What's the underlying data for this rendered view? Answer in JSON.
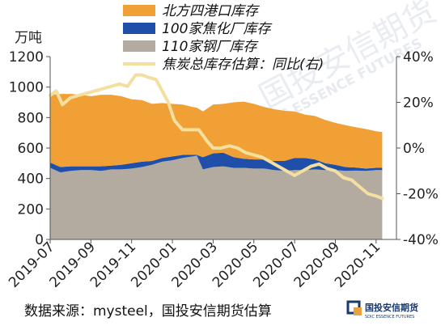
{
  "chart_data": {
    "type": "area",
    "left_unit": "万吨",
    "ylim_left": [
      0,
      1200
    ],
    "left_ticks": [
      0,
      200,
      400,
      600,
      800,
      1000,
      1200
    ],
    "ylim_right": [
      -40,
      40
    ],
    "right_ticks": [
      "-40%",
      "-20%",
      "0%",
      "20%",
      "40%"
    ],
    "right_tick_values": [
      -40,
      -20,
      0,
      20,
      40
    ],
    "x_range": [
      0,
      17
    ],
    "x_tick_positions": [
      0,
      2,
      4,
      6,
      8,
      10,
      12,
      14,
      16
    ],
    "x_ticks": [
      "2019-07",
      "2019-09",
      "2019-11",
      "2020-01",
      "2020-03",
      "2020-05",
      "2020-07",
      "2020-09",
      "2020-11"
    ],
    "x": [
      0,
      0.5,
      1,
      1.5,
      2,
      2.5,
      3,
      3.5,
      4,
      4.5,
      5,
      5.5,
      6,
      6.5,
      7,
      7.2,
      7.5,
      8,
      8.5,
      9,
      9.5,
      10,
      10.5,
      11,
      11.5,
      12,
      12.5,
      13,
      13.5,
      14,
      14.5,
      15,
      15.5,
      16,
      16.3
    ],
    "series": [
      {
        "name": "110家钢厂库存",
        "axis": "left",
        "color": "#b3aba0",
        "values": [
          470,
          440,
          450,
          455,
          455,
          450,
          460,
          460,
          465,
          475,
          490,
          510,
          520,
          535,
          545,
          550,
          460,
          475,
          480,
          470,
          470,
          465,
          465,
          455,
          450,
          455,
          455,
          460,
          455,
          455,
          450,
          452,
          450,
          455,
          455
        ]
      },
      {
        "name": "100家焦化厂库存",
        "axis": "left",
        "color": "#1f4fa8",
        "values": [
          35,
          35,
          30,
          25,
          25,
          30,
          25,
          30,
          35,
          35,
          25,
          25,
          25,
          20,
          10,
          5,
          80,
          90,
          90,
          70,
          60,
          60,
          60,
          60,
          65,
          80,
          80,
          65,
          45,
          35,
          25,
          20,
          15,
          15,
          15
        ]
      },
      {
        "name": "北方四港口库存",
        "axis": "left",
        "color": "#f0a035",
        "values": [
          445,
          480,
          475,
          470,
          460,
          470,
          465,
          450,
          420,
          405,
          375,
          360,
          345,
          330,
          315,
          310,
          300,
          320,
          320,
          360,
          375,
          365,
          345,
          340,
          330,
          305,
          285,
          285,
          285,
          275,
          275,
          265,
          260,
          240,
          235
        ]
      }
    ],
    "line": {
      "name": "焦炭总库存估算：同比(右)",
      "axis": "right",
      "color": "#f3df9f",
      "x": [
        0,
        0.3,
        0.6,
        1,
        1.4,
        1.8,
        2.2,
        2.6,
        3,
        3.4,
        3.8,
        4.2,
        4.5,
        4.8,
        5.2,
        5.5,
        5.8,
        6.1,
        6.5,
        6.9,
        7.3,
        7.7,
        8,
        8.4,
        8.8,
        9.2,
        9.6,
        10,
        10.4,
        10.8,
        11.2,
        11.6,
        12,
        12.4,
        12.8,
        13.2,
        13.6,
        14,
        14.4,
        14.8,
        15.2,
        15.6,
        16,
        16.3
      ],
      "values": [
        23,
        25,
        19,
        22,
        23,
        24,
        25,
        26,
        27,
        28,
        27,
        32,
        32,
        31,
        30,
        25,
        20,
        12,
        8,
        8,
        8,
        3,
        0,
        0,
        1,
        0,
        -2,
        -3,
        -4,
        -6,
        -8,
        -10,
        -12,
        -10,
        -8,
        -7,
        -9,
        -10,
        -13,
        -14,
        -17,
        -20,
        -21,
        -22
      ]
    },
    "grid": false,
    "legend_position": "top"
  },
  "unit_label": "万吨",
  "legend": [
    {
      "label": "北方四港口库存",
      "color": "#f0a035",
      "shape": "box"
    },
    {
      "label": "100家焦化厂库存",
      "color": "#1f4fa8",
      "shape": "box"
    },
    {
      "label": "110家钢厂库存",
      "color": "#b3aba0",
      "shape": "box"
    },
    {
      "label": "焦炭总库存估算：同比(右)",
      "color": "#f3df9f",
      "shape": "line"
    }
  ],
  "source_text": "数据来源：mysteel，国投安信期货估算",
  "logo": {
    "name": "国投安信期货",
    "sub": "SDIC ESSENCE FUTURES",
    "colors": [
      "#1b3a6b",
      "#e8a33d"
    ]
  },
  "watermark": {
    "cn": "国投安信期货",
    "en": "SDIC ESSENCE FUTURES"
  }
}
